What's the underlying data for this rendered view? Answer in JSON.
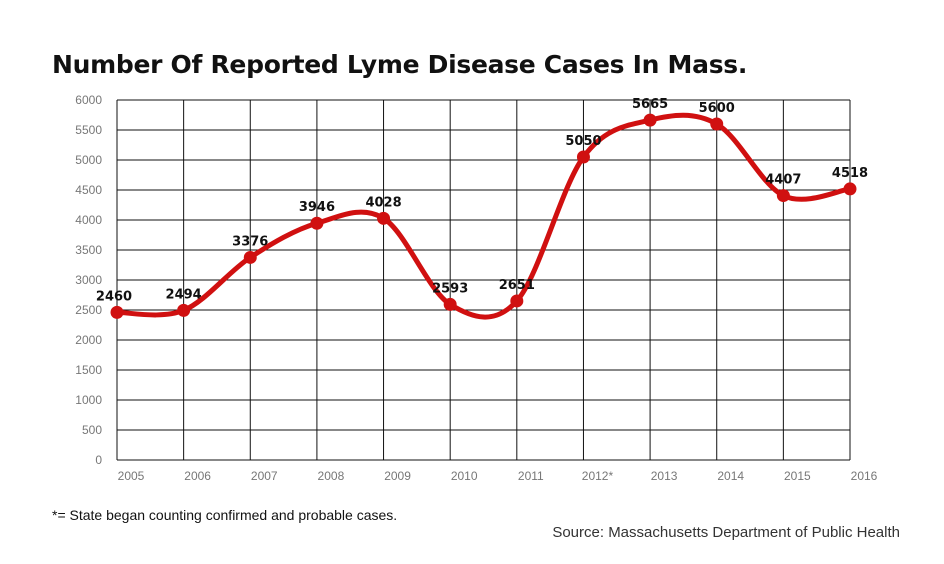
{
  "title": "Number Of Reported Lyme Disease Cases In Mass.",
  "footnote": "*= State began counting confirmed and probable cases.",
  "source": "Source: Massachusetts Department of Public Health",
  "colors": {
    "line": "#d01010",
    "grid": "#111111",
    "tick": "#777777"
  },
  "chart_data": {
    "type": "line",
    "title": "Number Of Reported Lyme Disease Cases In Mass.",
    "categories": [
      "2005",
      "2006",
      "2007",
      "2008",
      "2009",
      "2010",
      "2011",
      "2012*",
      "2013",
      "2014",
      "2015",
      "2016"
    ],
    "series": [
      {
        "values": [
          2460,
          2494,
          3376,
          3946,
          4028,
          2593,
          2651,
          5050,
          5665,
          5600,
          4407,
          4518
        ]
      }
    ],
    "data_labels": [
      "2460",
      "2494",
      "3376",
      "3946",
      "4028",
      "2593",
      "2651",
      "5050",
      "5665",
      "5600",
      "4407",
      "4518"
    ],
    "ylim": [
      0,
      6000
    ],
    "yticks": [
      0,
      500,
      1000,
      1500,
      2000,
      2500,
      3000,
      3500,
      4000,
      4500,
      5000,
      5500,
      6000
    ],
    "grid": true,
    "legend": "none"
  }
}
